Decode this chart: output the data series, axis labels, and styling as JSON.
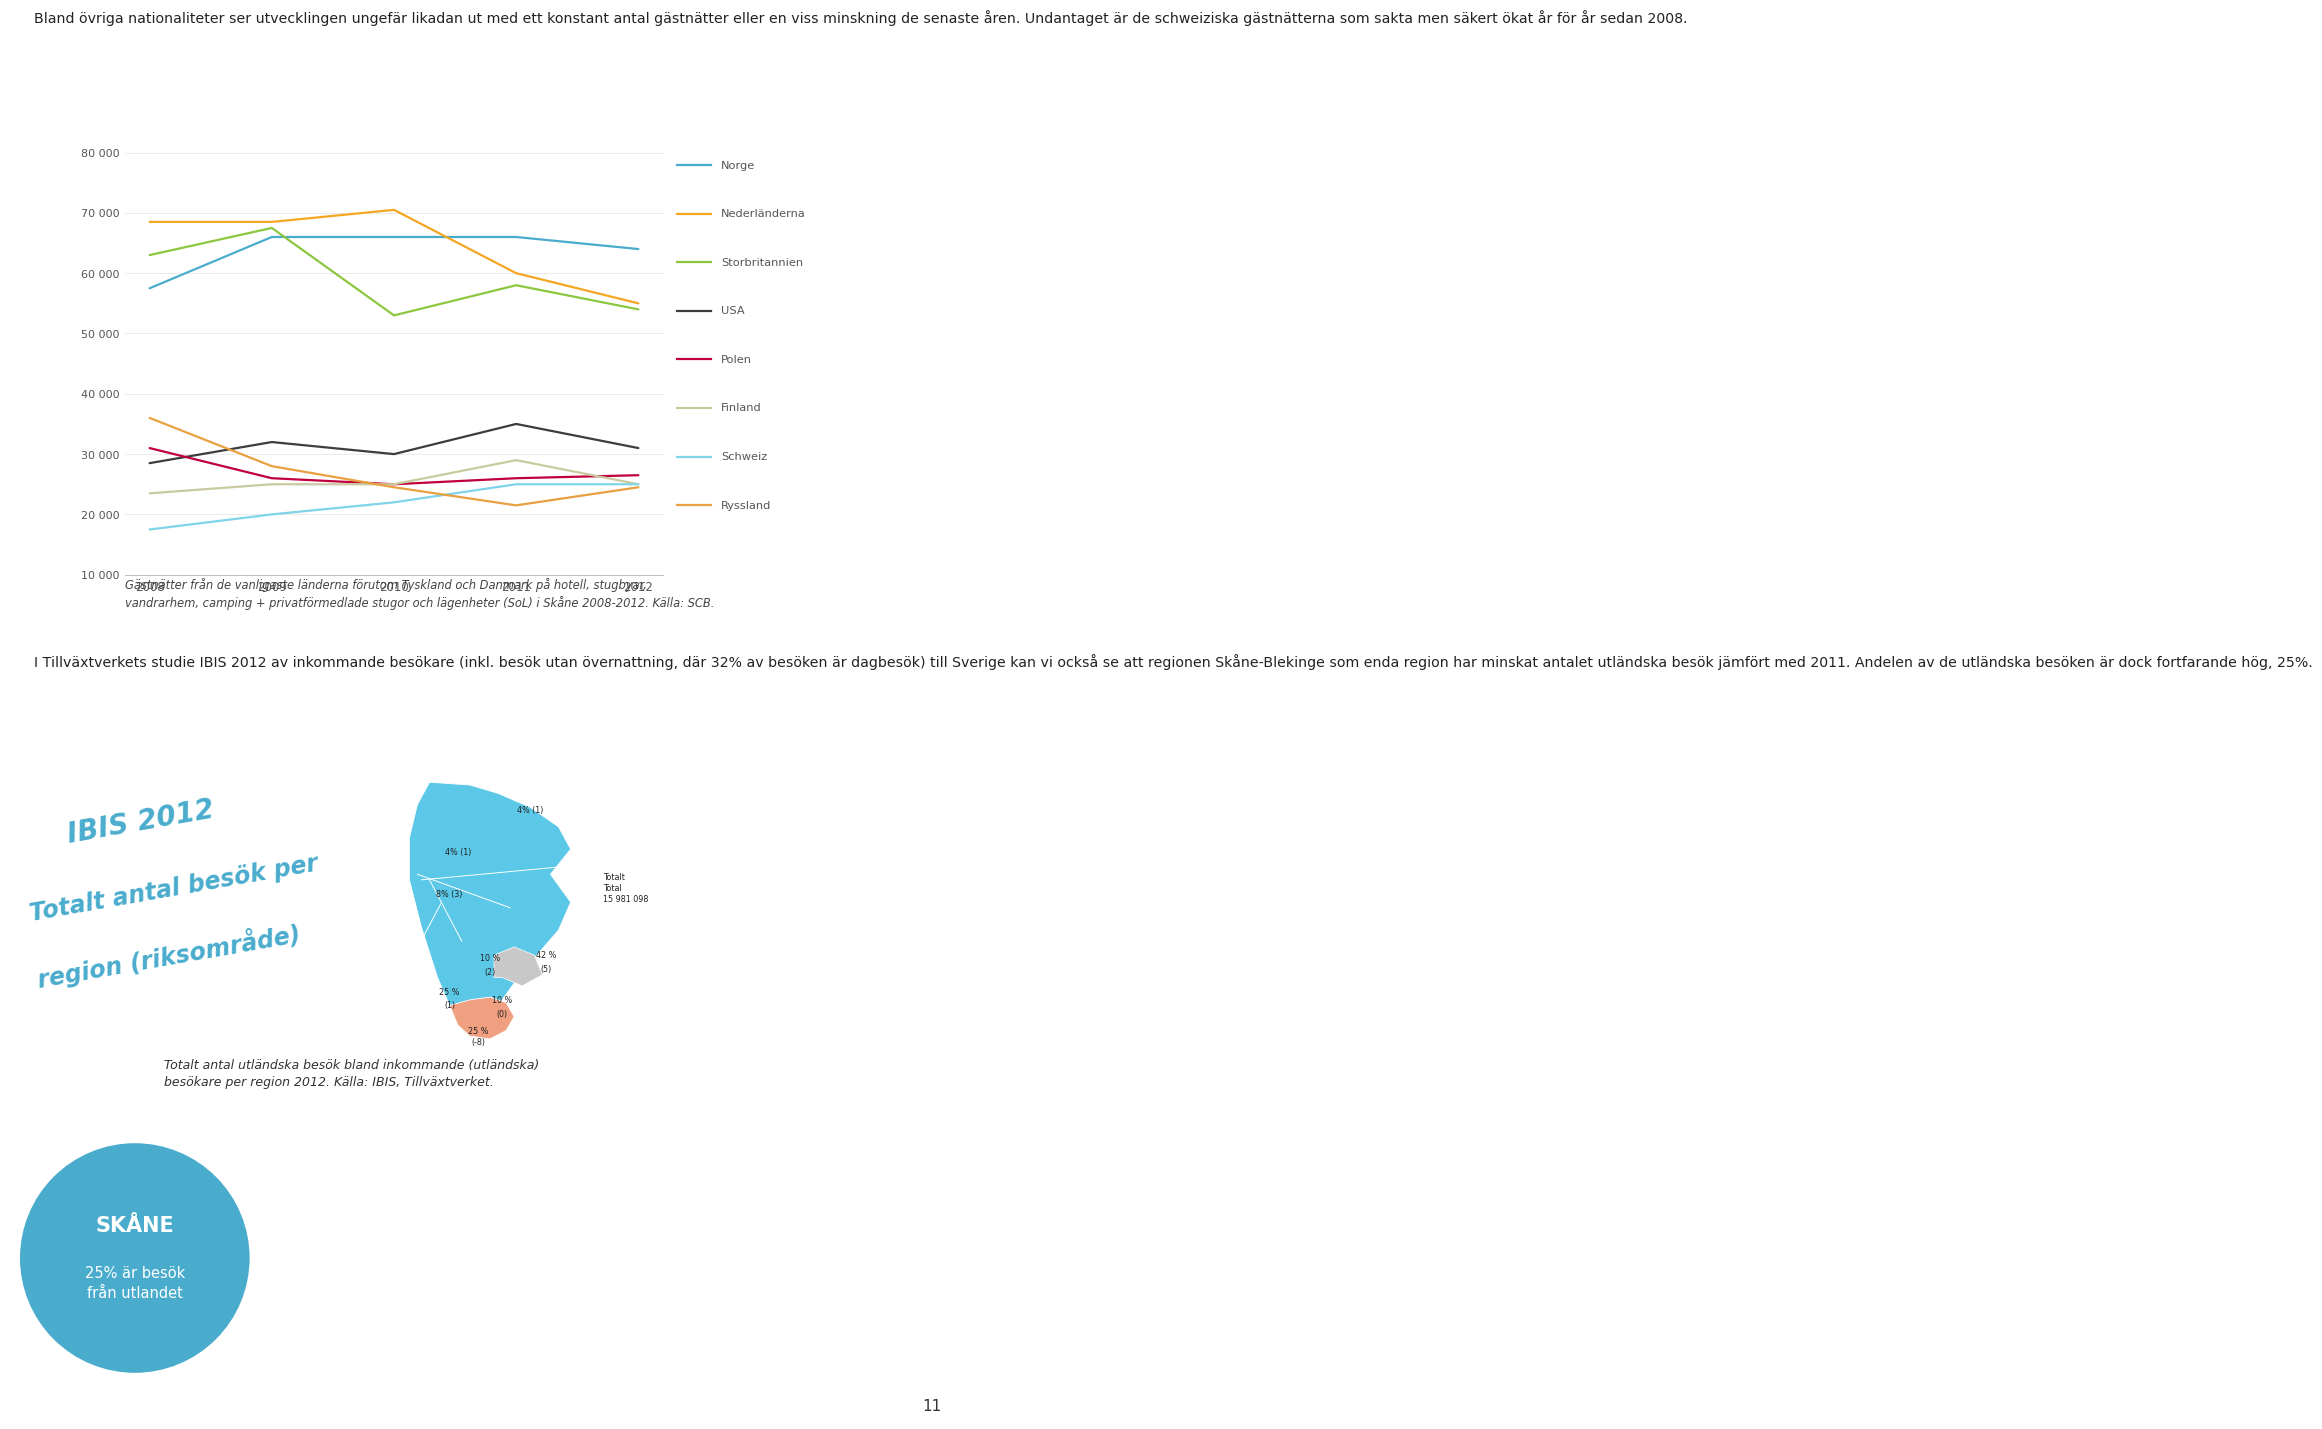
{
  "intro_text": "Bland övriga nationaliteter ser utvecklingen ungefär likadan ut med ett konstant antal gästnätter eller en viss minskning de senaste åren. Undantaget är de schweiziska gästnätterna som sakta men säkert ökat år för år sedan 2008.",
  "years": [
    2008,
    2009,
    2010,
    2011,
    2012
  ],
  "series_order": [
    "Norge",
    "Nederländerna",
    "Storbritannien",
    "USA",
    "Polen",
    "Finland",
    "Schweiz",
    "Ryssland"
  ],
  "series": {
    "Norge": [
      57500,
      66000,
      66000,
      66000,
      64000
    ],
    "Nederländerna": [
      68500,
      68500,
      70500,
      60000,
      55000
    ],
    "Storbritannien": [
      63000,
      67500,
      53000,
      58000,
      54000
    ],
    "USA": [
      28500,
      32000,
      30000,
      35000,
      31000
    ],
    "Polen": [
      31000,
      26000,
      25000,
      26000,
      26500
    ],
    "Finland": [
      23500,
      25000,
      25000,
      29000,
      25000
    ],
    "Schweiz": [
      17500,
      20000,
      22000,
      25000,
      25000
    ],
    "Ryssland": [
      36000,
      28000,
      24500,
      21500,
      24500
    ]
  },
  "colors": {
    "Norge": "#4AACCD",
    "Nederländerna": "#F5A623",
    "Storbritannien": "#8DC63F",
    "USA": "#3D3D3D",
    "Polen": "#C0003C",
    "Finland": "#CACAA0",
    "Schweiz": "#7FD4E8",
    "Ryssland": "#E8A040"
  },
  "ylim": [
    10000,
    80000
  ],
  "yticks": [
    10000,
    20000,
    30000,
    40000,
    50000,
    60000,
    70000,
    80000
  ],
  "ytick_labels": [
    "10 000",
    "20 000",
    "30 000",
    "40 000",
    "50 000",
    "60 000",
    "70 000",
    "80 000"
  ],
  "caption": "Gästnätter från de vanligaste länderna förutom Tyskland och Danmark på hotell, stugbyar,\nvandrarhem, camping + privatförmedlade stugor och lägenheter (SoL) i Skåne 2008-2012. Källa: SCB.",
  "text2": "I Tillväxtverkets studie IBIS 2012 av inkommande besökare (inkl. besök utan övernattning, där 32% av besöken är dagbesök) till Sverige kan vi också se att regionen Skåne-Blekinge som enda region har minskat antalet utländska besök jämfört med 2011. Andelen av de utländska besöken är dock fortfarande hög, 25%.",
  "ibis_line1": "IBIS 2012",
  "ibis_line2": "Totalt antal besök per",
  "ibis_line3": "region (riksområde)",
  "map_caption": "Totalt antal utländska besök bland inkommande (utländska)\nbesökare per region 2012. Källa: IBIS, Tillväxtverket.",
  "skane_title": "SKÅNE",
  "skane_text": "25% är besök\nfrån utlandet",
  "page_number": "11",
  "bg": "#FFFFFF",
  "text_color": "#222222",
  "legend_color": "#555555",
  "chart_color": "#555555",
  "ibis_color": "#4AACCD",
  "circle_color": "#4AACCD",
  "map_blue": "#5BC8E8",
  "map_orange": "#F0A080",
  "map_gray": "#C8C8C8",
  "map_white": "#E8E8E8"
}
